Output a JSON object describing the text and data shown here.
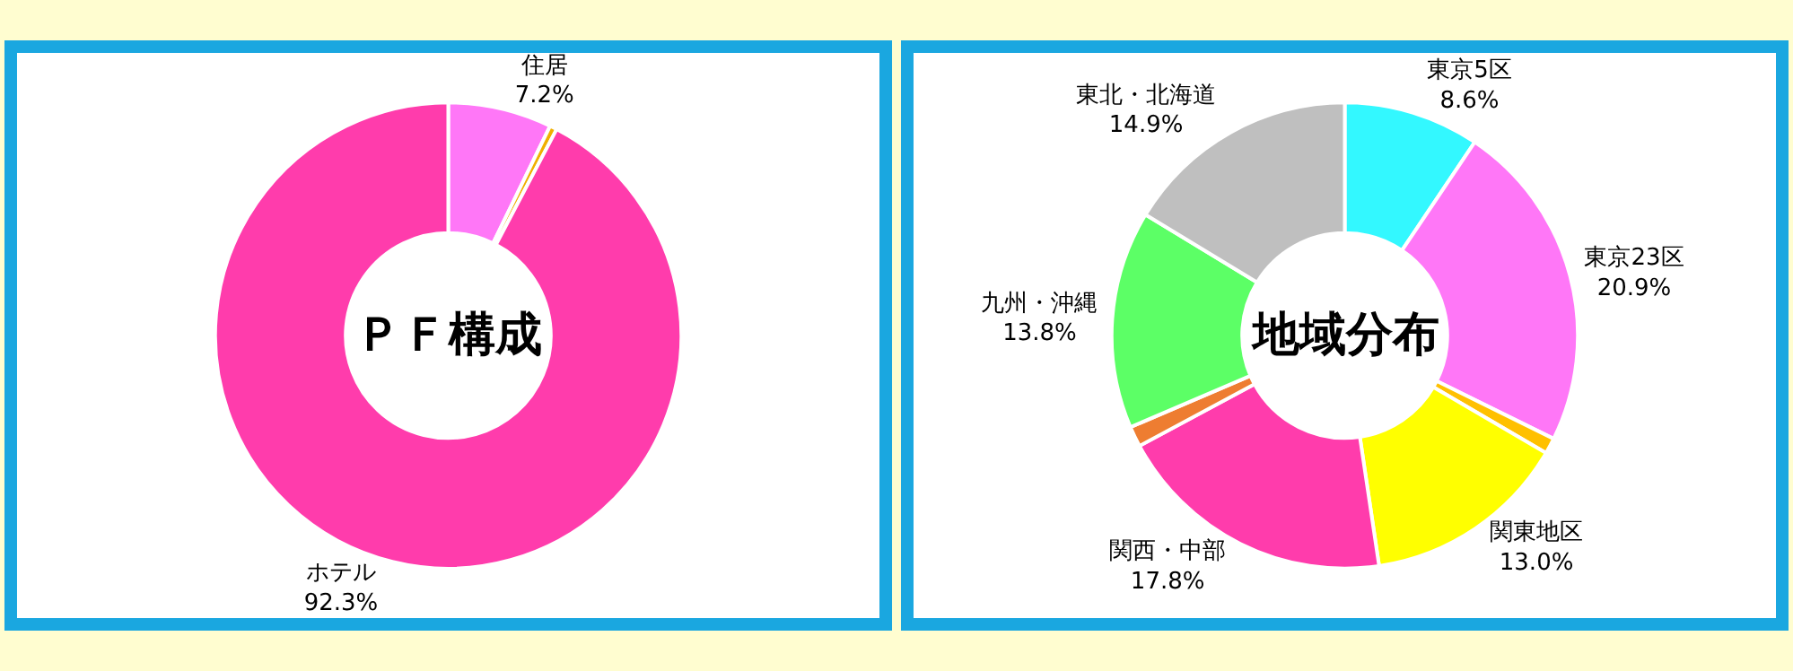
{
  "chart_data": [
    {
      "type": "donut",
      "title": "ＰＦ構成",
      "categories": [
        "住居",
        null,
        "ホテル"
      ],
      "values": [
        7.2,
        0.5,
        92.3
      ],
      "value_labels": [
        "7.2%",
        null,
        "92.3%"
      ],
      "colors": [
        "#ff77f7",
        "#f0b000",
        "#ff3cac"
      ]
    },
    {
      "type": "donut",
      "title": "地域分布",
      "categories": [
        "東京5区",
        "東京23区",
        null,
        "関東地区",
        "関西・中部",
        null,
        "九州・沖縄",
        "東北・北海道"
      ],
      "values": [
        8.6,
        20.9,
        1.0,
        13.0,
        17.8,
        1.3,
        13.8,
        14.9
      ],
      "value_labels": [
        "8.6%",
        "20.9%",
        null,
        "13.0%",
        "17.8%",
        null,
        "13.8%",
        "14.9%"
      ],
      "colors": [
        "#33f8ff",
        "#ff77f7",
        "#ffc000",
        "#ffff00",
        "#ff3cac",
        "#ee7d31",
        "#5cff66",
        "#bfbfbf"
      ]
    }
  ]
}
